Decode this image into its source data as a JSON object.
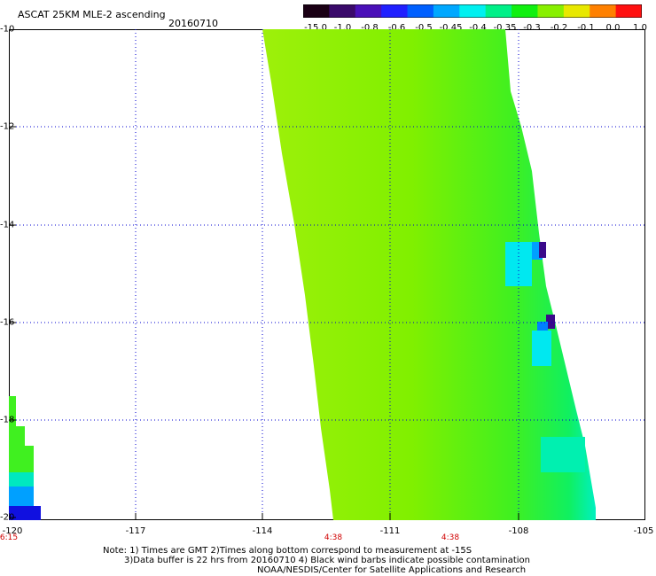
{
  "header": {
    "title": "ASCAT 25KM MLE-2 ascending",
    "date": "20160710"
  },
  "colorbar": {
    "labels": [
      "-15.0",
      "-1.0",
      "-0.8",
      "-0.6",
      "-0.5",
      "-0.45",
      "-0.4",
      "-0.35",
      "-0.3",
      "-0.2",
      "-0.1",
      "0.0",
      "1.0"
    ],
    "colors": [
      "#1a0014",
      "#3a0a6a",
      "#4a10b8",
      "#2020ff",
      "#0060ff",
      "#00a8ff",
      "#00f0f0",
      "#00f088",
      "#10f010",
      "#88f000",
      "#e8e800",
      "#ff8000",
      "#ff1010"
    ]
  },
  "axes": {
    "y_labels": [
      "-10",
      "-12",
      "-14",
      "-16",
      "-18",
      "-20"
    ],
    "x_labels": [
      "-120",
      "-117",
      "-114",
      "-111",
      "-108",
      "-105"
    ]
  },
  "time_labels": [
    "6:15",
    "4:38",
    "4:38"
  ],
  "notes": {
    "line1": "Note: 1) Times are GMT 2)Times along bottom correspond to measurement at -15S",
    "line2": "3)Data buffer is 22 hrs from 20160710 4) Black wind barbs indicate possible contamination",
    "line3": "NOAA/NESDIS/Center for Satellite Applications and Research"
  }
}
